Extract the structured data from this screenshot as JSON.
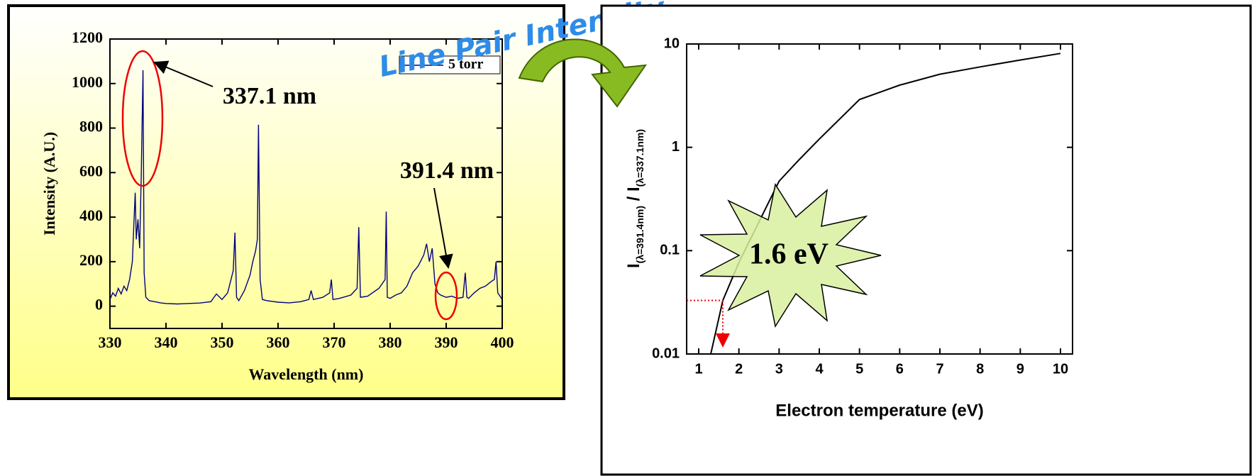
{
  "chart_data": [
    {
      "type": "line",
      "title": "Line Pair Intensity",
      "xlabel": "Wavelength (nm)",
      "ylabel": "Intensity (A.U.)",
      "xlim": [
        330,
        400
      ],
      "ylim": [
        -100,
        1200
      ],
      "xticks": [
        330,
        340,
        350,
        360,
        370,
        380,
        390,
        400
      ],
      "yticks": [
        0,
        200,
        400,
        600,
        800,
        1000,
        1200
      ],
      "legend": "top-right",
      "annotations": [
        "337.1 nm",
        "391.4 nm"
      ],
      "x": [
        330,
        330.5,
        331,
        331.5,
        332,
        332.5,
        333,
        333.5,
        334,
        334.3,
        334.5,
        334.7,
        335,
        335.3,
        335.6,
        335.9,
        336.1,
        336.4,
        337,
        338,
        339,
        340,
        342,
        344,
        346,
        348,
        349,
        350,
        351,
        351.5,
        352,
        352.3,
        352.6,
        353,
        354,
        355,
        355.5,
        356,
        356.3,
        356.5,
        356.8,
        357.2,
        358,
        360,
        362,
        364,
        365.5,
        365.9,
        366.3,
        368,
        369.2,
        369.5,
        369.8,
        371,
        373,
        374.1,
        374.4,
        374.7,
        376,
        378,
        379.1,
        379.3,
        379.5,
        380,
        381,
        382,
        383,
        384,
        385,
        386,
        386.5,
        387,
        387.5,
        388,
        388.5,
        389,
        390,
        391,
        392,
        393,
        393.4,
        393.7,
        394,
        395,
        396,
        397,
        398,
        398.6,
        398.9,
        399.2,
        400
      ],
      "series": [
        {
          "name": "5 torr",
          "color": "#000080",
          "values": [
            30,
            60,
            45,
            80,
            55,
            90,
            70,
            120,
            200,
            390,
            510,
            300,
            390,
            260,
            600,
            1060,
            150,
            40,
            25,
            20,
            15,
            12,
            10,
            12,
            14,
            20,
            55,
            30,
            60,
            110,
            160,
            330,
            40,
            25,
            70,
            140,
            200,
            250,
            300,
            815,
            120,
            30,
            25,
            18,
            15,
            20,
            30,
            70,
            30,
            40,
            60,
            120,
            30,
            35,
            50,
            80,
            355,
            40,
            45,
            80,
            120,
            425,
            40,
            35,
            50,
            60,
            90,
            150,
            180,
            230,
            280,
            200,
            260,
            100,
            60,
            50,
            40,
            45,
            35,
            40,
            150,
            40,
            35,
            60,
            80,
            90,
            110,
            120,
            200,
            60,
            30
          ]
        }
      ]
    },
    {
      "type": "line",
      "xlabel": "Electron temperature (eV)",
      "ylabel_parts": [
        "I",
        "(λ=391.4nm)",
        " / I",
        "(λ=337.1nm)"
      ],
      "ylog": true,
      "xlim": [
        0.7,
        10.3
      ],
      "ylim": [
        0.01,
        10
      ],
      "xticks": [
        1,
        2,
        3,
        4,
        5,
        6,
        7,
        8,
        9,
        10
      ],
      "yticks": [
        0.01,
        0.1,
        1,
        10
      ],
      "annotation": "1.6 eV",
      "readout": {
        "x": 1.6,
        "y": 0.033
      },
      "x": [
        1.3,
        1.6,
        2,
        2.5,
        3,
        3.5,
        4,
        5,
        6,
        7,
        8,
        9,
        10
      ],
      "series": [
        {
          "color": "#000000",
          "values": [
            0.01,
            0.033,
            0.077,
            0.19,
            0.47,
            0.76,
            1.2,
            2.9,
            4.0,
            5.1,
            6.0,
            7.0,
            8.1
          ]
        }
      ]
    }
  ]
}
